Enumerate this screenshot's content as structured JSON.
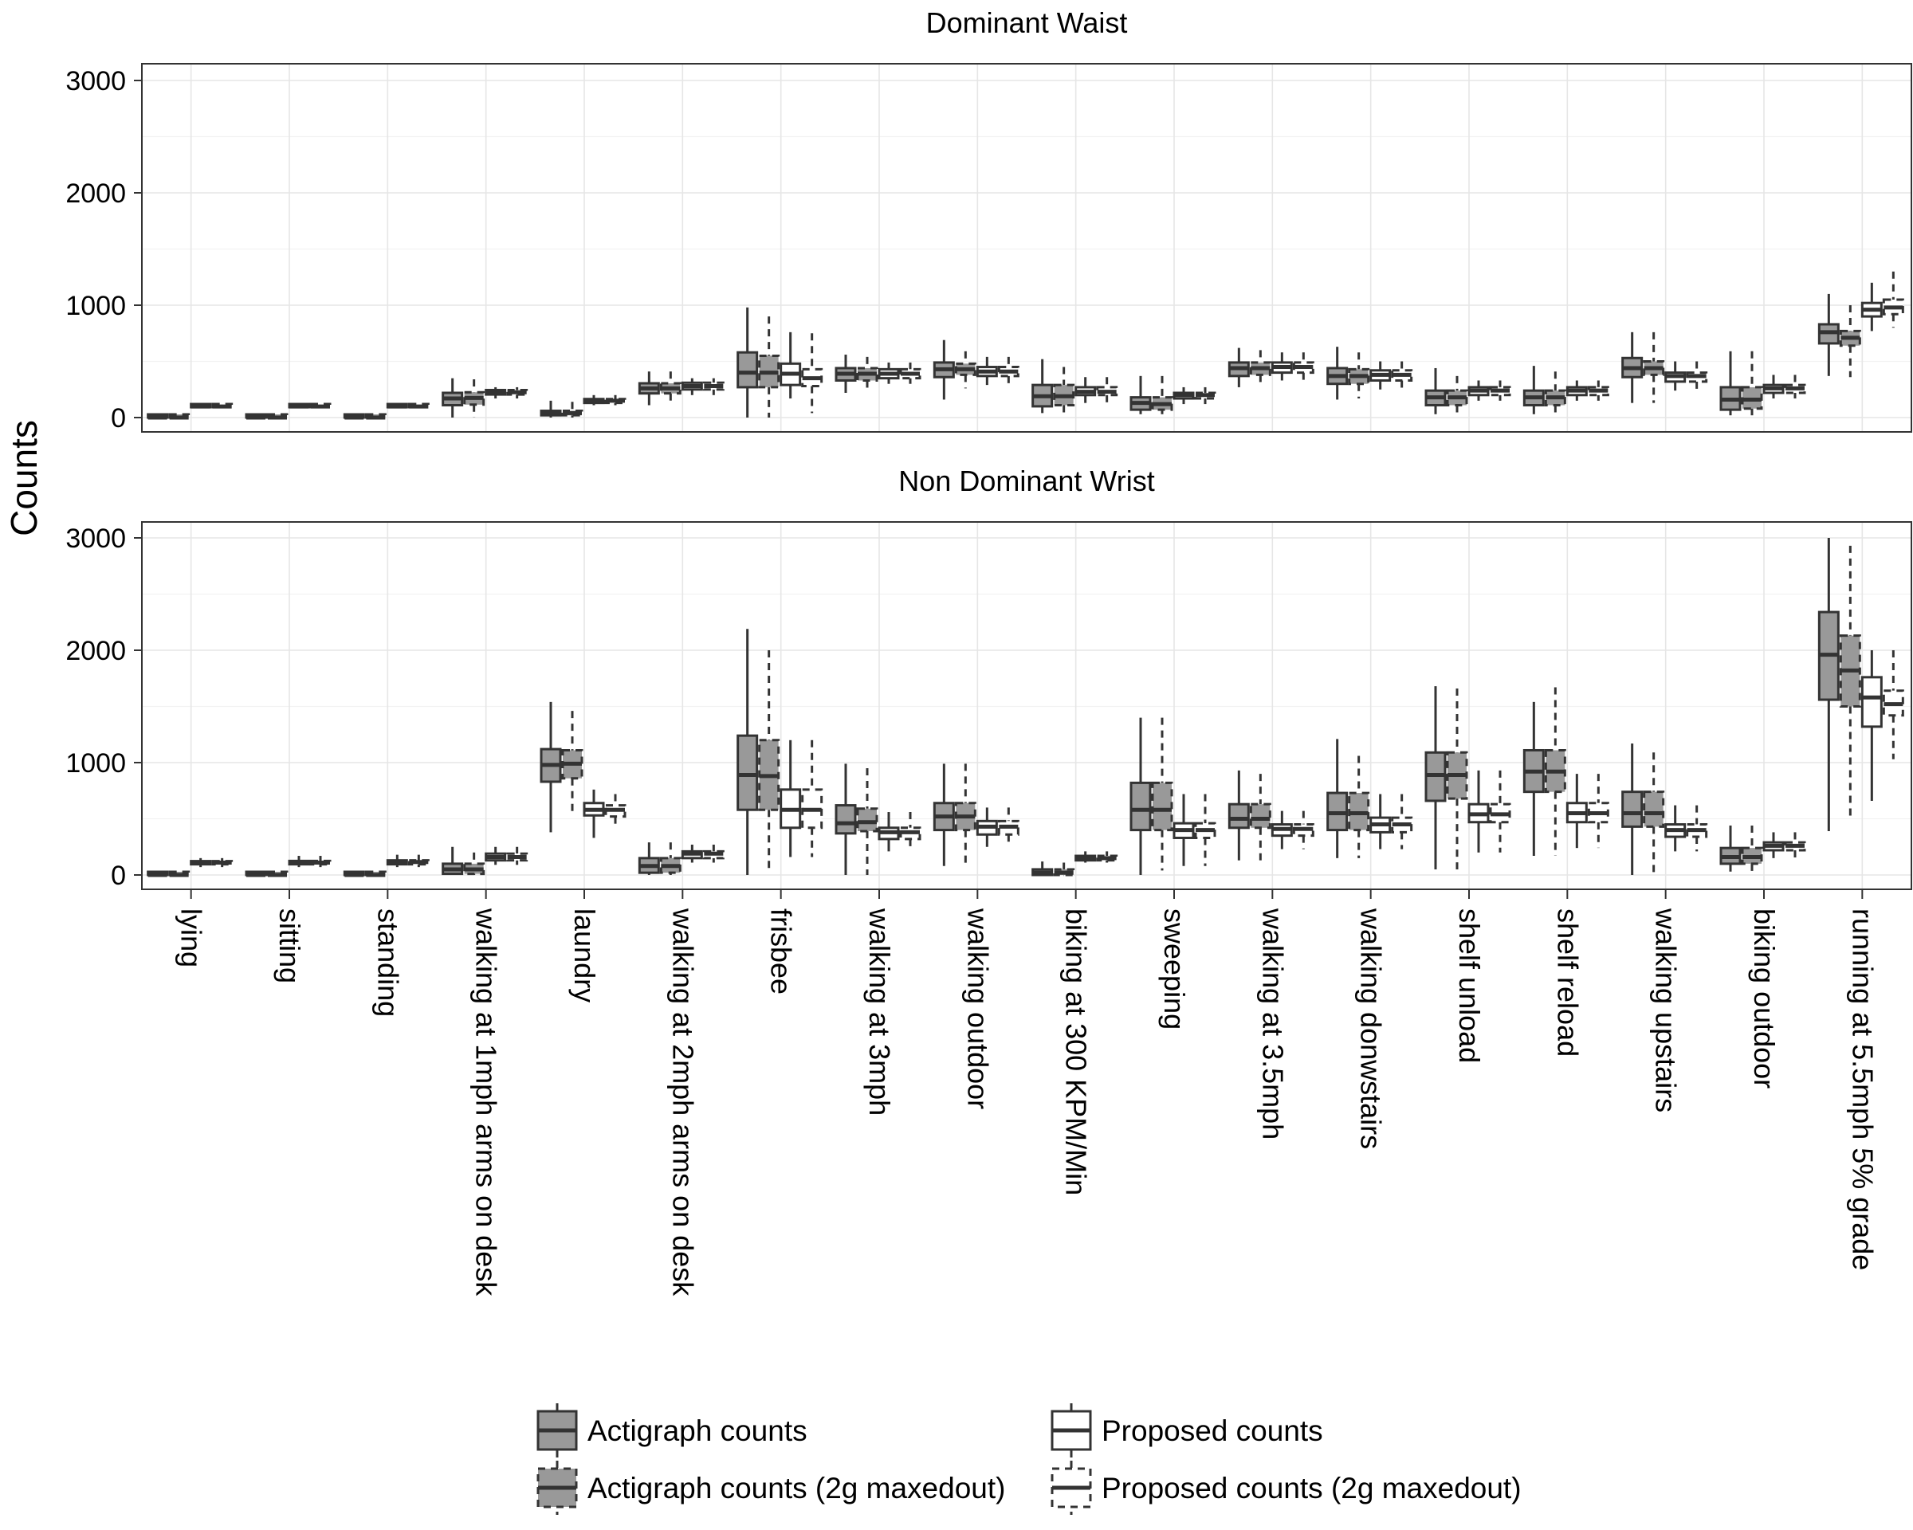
{
  "chart_data": {
    "type": "box",
    "ylabel": "Counts",
    "y_ticks": [
      0,
      1000,
      2000,
      3000
    ],
    "ylim": [
      -120,
      3150
    ],
    "grid": true,
    "legend_position": "bottom",
    "categories": [
      "lying",
      "sitting",
      "standing",
      "walking at 1mph arms on desk",
      "laundry",
      "walking at 2mph arms on desk",
      "frisbee",
      "walking at 3mph",
      "walking outdoor",
      "biking at 300 KPM/Min",
      "sweeping",
      "walking at 3.5mph",
      "walking donwstairs",
      "shelf unload",
      "shelf reload",
      "walking upstairs",
      "biking outdoor",
      "running at 5.5mph 5% grade"
    ],
    "series": [
      {
        "name": "Actigraph counts",
        "color": "#999999",
        "line": "solid"
      },
      {
        "name": "Actigraph counts (2g maxedout)",
        "color": "#999999",
        "line": "dashed"
      },
      {
        "name": "Proposed counts",
        "color": "#ffffff",
        "line": "solid"
      },
      {
        "name": "Proposed counts (2g maxedout)",
        "color": "#ffffff",
        "line": "dashed"
      }
    ],
    "panels": [
      {
        "title": "Dominant Waist",
        "data": [
          [
            [
              0,
              0,
              0,
              0,
              0
            ],
            [
              0,
              0,
              0,
              0,
              0
            ],
            [
              85,
              92,
              98,
              103,
              110
            ],
            [
              85,
              92,
              98,
              103,
              110
            ]
          ],
          [
            [
              0,
              0,
              0,
              0,
              0
            ],
            [
              0,
              0,
              0,
              0,
              0
            ],
            [
              85,
              92,
              98,
              103,
              110
            ],
            [
              85,
              92,
              98,
              103,
              110
            ]
          ],
          [
            [
              0,
              0,
              0,
              0,
              0
            ],
            [
              0,
              0,
              0,
              0,
              0
            ],
            [
              85,
              92,
              98,
              103,
              110
            ],
            [
              85,
              92,
              98,
              103,
              110
            ]
          ],
          [
            [
              0,
              110,
              170,
              220,
              350
            ],
            [
              0,
              115,
              175,
              225,
              340
            ],
            [
              170,
              205,
              225,
              245,
              270
            ],
            [
              170,
              205,
              225,
              245,
              270
            ]
          ],
          [
            [
              0,
              20,
              40,
              60,
              150
            ],
            [
              0,
              20,
              40,
              60,
              140
            ],
            [
              110,
              130,
              150,
              165,
              200
            ],
            [
              110,
              130,
              150,
              165,
              200
            ]
          ],
          [
            [
              110,
              215,
              260,
              305,
              410
            ],
            [
              110,
              215,
              260,
              305,
              410
            ],
            [
              200,
              250,
              280,
              310,
              350
            ],
            [
              200,
              250,
              280,
              310,
              350
            ]
          ],
          [
            [
              0,
              270,
              400,
              580,
              980
            ],
            [
              0,
              270,
              400,
              550,
              900
            ],
            [
              170,
              290,
              390,
              480,
              760
            ],
            [
              40,
              280,
              350,
              430,
              750
            ]
          ],
          [
            [
              220,
              330,
              390,
              440,
              560
            ],
            [
              220,
              330,
              390,
              440,
              540
            ],
            [
              300,
              350,
              390,
              430,
              490
            ],
            [
              300,
              350,
              390,
              430,
              490
            ]
          ],
          [
            [
              160,
              360,
              430,
              490,
              690
            ],
            [
              260,
              380,
              430,
              480,
              590
            ],
            [
              290,
              370,
              410,
              450,
              540
            ],
            [
              290,
              370,
              410,
              450,
              540
            ]
          ],
          [
            [
              40,
              100,
              190,
              290,
              520
            ],
            [
              40,
              110,
              190,
              290,
              450
            ],
            [
              130,
              200,
              230,
              270,
              360
            ],
            [
              130,
              200,
              230,
              270,
              360
            ]
          ],
          [
            [
              30,
              70,
              130,
              180,
              370
            ],
            [
              30,
              70,
              120,
              180,
              370
            ],
            [
              120,
              170,
              200,
              220,
              270
            ],
            [
              120,
              170,
              200,
              220,
              270
            ]
          ],
          [
            [
              270,
              370,
              440,
              490,
              620
            ],
            [
              280,
              380,
              440,
              490,
              600
            ],
            [
              330,
              400,
              450,
              490,
              580
            ],
            [
              330,
              400,
              450,
              490,
              580
            ]
          ],
          [
            [
              160,
              300,
              370,
              440,
              630
            ],
            [
              170,
              300,
              370,
              430,
              580
            ],
            [
              250,
              330,
              380,
              420,
              500
            ],
            [
              250,
              330,
              380,
              420,
              500
            ]
          ],
          [
            [
              30,
              110,
              180,
              240,
              440
            ],
            [
              30,
              110,
              180,
              240,
              370
            ],
            [
              150,
              200,
              240,
              270,
              330
            ],
            [
              150,
              200,
              240,
              270,
              330
            ]
          ],
          [
            [
              30,
              110,
              180,
              240,
              460
            ],
            [
              30,
              110,
              180,
              240,
              410
            ],
            [
              150,
              200,
              240,
              270,
              330
            ],
            [
              150,
              200,
              240,
              270,
              330
            ]
          ],
          [
            [
              130,
              360,
              440,
              530,
              760
            ],
            [
              130,
              380,
              440,
              500,
              760
            ],
            [
              240,
              320,
              370,
              400,
              500
            ],
            [
              240,
              320,
              370,
              400,
              500
            ]
          ],
          [
            [
              20,
              70,
              160,
              270,
              590
            ],
            [
              20,
              80,
              160,
              270,
              590
            ],
            [
              170,
              220,
              260,
              290,
              380
            ],
            [
              170,
              220,
              260,
              290,
              380
            ]
          ],
          [
            [
              370,
              660,
              760,
              830,
              1100
            ],
            [
              360,
              640,
              710,
              770,
              1000
            ],
            [
              770,
              900,
              960,
              1020,
              1200
            ],
            [
              800,
              920,
              980,
              1050,
              1300
            ]
          ]
        ]
      },
      {
        "title": "Non Dominant Wrist",
        "data": [
          [
            [
              0,
              0,
              0,
              0,
              0
            ],
            [
              0,
              0,
              0,
              0,
              0
            ],
            [
              70,
              95,
              110,
              120,
              150
            ],
            [
              70,
              95,
              110,
              120,
              150
            ]
          ],
          [
            [
              0,
              0,
              0,
              0,
              0
            ],
            [
              0,
              0,
              0,
              0,
              0
            ],
            [
              70,
              95,
              110,
              125,
              170
            ],
            [
              70,
              95,
              110,
              125,
              170
            ]
          ],
          [
            [
              0,
              0,
              0,
              0,
              0
            ],
            [
              0,
              0,
              0,
              0,
              0
            ],
            [
              70,
              95,
              115,
              130,
              180
            ],
            [
              70,
              95,
              115,
              130,
              180
            ]
          ],
          [
            [
              0,
              10,
              50,
              100,
              250
            ],
            [
              0,
              10,
              50,
              100,
              200
            ],
            [
              90,
              130,
              160,
              190,
              250
            ],
            [
              90,
              130,
              160,
              190,
              250
            ]
          ],
          [
            [
              380,
              830,
              980,
              1120,
              1540
            ],
            [
              560,
              860,
              990,
              1110,
              1460
            ],
            [
              330,
              530,
              580,
              640,
              760
            ],
            [
              420,
              520,
              580,
              620,
              720
            ]
          ],
          [
            [
              0,
              20,
              80,
              150,
              290
            ],
            [
              0,
              20,
              80,
              150,
              290
            ],
            [
              110,
              150,
              190,
              210,
              270
            ],
            [
              110,
              150,
              190,
              210,
              270
            ]
          ],
          [
            [
              0,
              580,
              890,
              1240,
              2190
            ],
            [
              30,
              580,
              880,
              1200,
              2000
            ],
            [
              160,
              420,
              580,
              760,
              1200
            ],
            [
              160,
              420,
              580,
              760,
              1200
            ]
          ],
          [
            [
              0,
              370,
              460,
              620,
              990
            ],
            [
              0,
              390,
              470,
              590,
              950
            ],
            [
              210,
              320,
              380,
              420,
              560
            ],
            [
              210,
              320,
              380,
              420,
              560
            ]
          ],
          [
            [
              80,
              400,
              520,
              640,
              990
            ],
            [
              80,
              400,
              520,
              640,
              990
            ],
            [
              250,
              360,
              430,
              480,
              600
            ],
            [
              250,
              360,
              430,
              480,
              600
            ]
          ],
          [
            [
              0,
              0,
              20,
              50,
              120
            ],
            [
              0,
              0,
              20,
              50,
              110
            ],
            [
              110,
              130,
              150,
              170,
              210
            ],
            [
              110,
              130,
              150,
              170,
              210
            ]
          ],
          [
            [
              0,
              400,
              580,
              820,
              1400
            ],
            [
              40,
              400,
              580,
              820,
              1400
            ],
            [
              80,
              330,
              400,
              460,
              720
            ],
            [
              80,
              330,
              400,
              460,
              720
            ]
          ],
          [
            [
              130,
              420,
              500,
              630,
              930
            ],
            [
              130,
              420,
              500,
              630,
              900
            ],
            [
              230,
              350,
              410,
              450,
              570
            ],
            [
              230,
              350,
              410,
              450,
              570
            ]
          ],
          [
            [
              150,
              400,
              550,
              730,
              1210
            ],
            [
              150,
              400,
              550,
              730,
              1060
            ],
            [
              230,
              380,
              450,
              510,
              720
            ],
            [
              230,
              380,
              450,
              510,
              720
            ]
          ],
          [
            [
              50,
              660,
              890,
              1090,
              1680
            ],
            [
              50,
              680,
              890,
              1090,
              1660
            ],
            [
              200,
              470,
              540,
              630,
              930
            ],
            [
              200,
              470,
              540,
              630,
              930
            ]
          ],
          [
            [
              170,
              740,
              920,
              1110,
              1540
            ],
            [
              170,
              740,
              920,
              1110,
              1670
            ],
            [
              240,
              470,
              550,
              640,
              900
            ],
            [
              240,
              470,
              550,
              640,
              900
            ]
          ],
          [
            [
              0,
              430,
              550,
              740,
              1170
            ],
            [
              0,
              430,
              550,
              740,
              1090
            ],
            [
              210,
              340,
              400,
              450,
              620
            ],
            [
              210,
              340,
              400,
              450,
              620
            ]
          ],
          [
            [
              30,
              100,
              160,
              240,
              440
            ],
            [
              30,
              100,
              160,
              240,
              440
            ],
            [
              150,
              220,
              260,
              290,
              380
            ],
            [
              150,
              220,
              260,
              290,
              380
            ]
          ],
          [
            [
              390,
              1560,
              1960,
              2340,
              3000
            ],
            [
              520,
              1500,
              1820,
              2130,
              2930
            ],
            [
              660,
              1320,
              1580,
              1760,
              2000
            ],
            [
              1030,
              1420,
              1520,
              1640,
              2000
            ]
          ]
        ]
      }
    ]
  }
}
